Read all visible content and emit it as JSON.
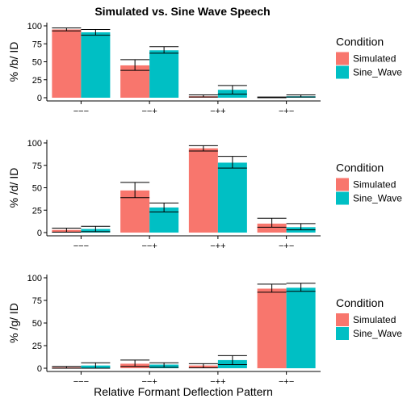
{
  "chart_data": {
    "type": "bar",
    "title": "Simulated vs. Sine Wave Speech",
    "xlabel": "Relative Formant Deflection Pattern",
    "categories": [
      "−−−",
      "−−+",
      "−++",
      "−+−"
    ],
    "ylim": [
      0,
      100
    ],
    "yticks": [
      0,
      25,
      50,
      75,
      100
    ],
    "legend": {
      "title": "Condition",
      "placement": "right",
      "series": [
        {
          "name": "Simulated",
          "color": "#F8766D"
        },
        {
          "name": "Sine_Wave",
          "color": "#00BFC4"
        }
      ]
    },
    "panels": [
      {
        "ylabel": "% /b/ ID",
        "series": [
          {
            "name": "Simulated",
            "values": [
              95,
              45,
              2,
              0.5
            ],
            "err_low": [
              93,
              38,
              1,
              0
            ],
            "err_high": [
              97,
              53,
              4,
              1
            ]
          },
          {
            "name": "Sine_Wave",
            "values": [
              91,
              66,
              11,
              2
            ],
            "err_low": [
              87,
              62,
              5,
              1
            ],
            "err_high": [
              95,
              71,
              17,
              4
            ]
          }
        ]
      },
      {
        "ylabel": "% /d/ ID",
        "series": [
          {
            "name": "Simulated",
            "values": [
              3,
              47,
              94,
              10
            ],
            "err_low": [
              0.5,
              39,
              91,
              6
            ],
            "err_high": [
              5,
              56,
              97,
              16
            ]
          },
          {
            "name": "Sine_Wave",
            "values": [
              4,
              28,
              78,
              6
            ],
            "err_low": [
              1,
              23,
              72,
              3
            ],
            "err_high": [
              7,
              33,
              85,
              10
            ]
          }
        ]
      },
      {
        "ylabel": "% /g/ ID",
        "series": [
          {
            "name": "Simulated",
            "values": [
              1,
              5,
              3,
              88
            ],
            "err_low": [
              0,
              2,
              0.5,
              84
            ],
            "err_high": [
              2,
              9,
              5,
              93
            ]
          },
          {
            "name": "Sine_Wave",
            "values": [
              3,
              4,
              9,
              89
            ],
            "err_low": [
              0,
              1,
              4,
              85
            ],
            "err_high": [
              6,
              6,
              14,
              94
            ]
          }
        ]
      }
    ]
  }
}
